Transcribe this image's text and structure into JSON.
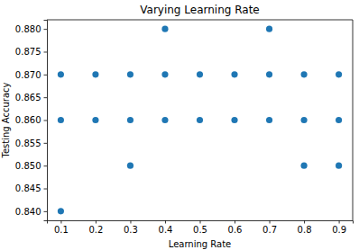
{
  "chart_data": {
    "type": "scatter",
    "title": "Varying Learning Rate",
    "x_label": "Learning Rate",
    "y_label": "Testing Accuracy",
    "x": [
      0.1,
      0.1,
      0.1,
      0.2,
      0.2,
      0.3,
      0.3,
      0.3,
      0.4,
      0.4,
      0.4,
      0.5,
      0.5,
      0.6,
      0.6,
      0.7,
      0.7,
      0.7,
      0.8,
      0.8,
      0.8,
      0.9,
      0.9,
      0.9
    ],
    "values": [
      0.87,
      0.86,
      0.84,
      0.87,
      0.86,
      0.87,
      0.86,
      0.85,
      0.88,
      0.87,
      0.86,
      0.87,
      0.86,
      0.87,
      0.86,
      0.88,
      0.87,
      0.86,
      0.87,
      0.86,
      0.85,
      0.87,
      0.86,
      0.85
    ],
    "color": "#1f77b4",
    "marker": "circle",
    "xlim": [
      0.06,
      0.94
    ],
    "xticks": [
      0.1,
      0.2,
      0.3,
      0.4,
      0.5,
      0.6,
      0.7,
      0.8,
      0.9
    ],
    "ylim": [
      0.838,
      0.882
    ],
    "yticks": [
      {
        "value": 0.84,
        "label": "0.840"
      },
      {
        "value": 0.845,
        "label": "0.845"
      },
      {
        "value": 0.85,
        "label": "0.850"
      },
      {
        "value": 0.855,
        "label": "0.855"
      },
      {
        "value": 0.86,
        "label": "0.860"
      },
      {
        "value": 0.865,
        "label": "0.865"
      },
      {
        "value": 0.87,
        "label": "0.870"
      },
      {
        "value": 0.875,
        "label": "0.875"
      },
      {
        "value": 0.88,
        "label": "0.880"
      }
    ],
    "grid": false
  }
}
